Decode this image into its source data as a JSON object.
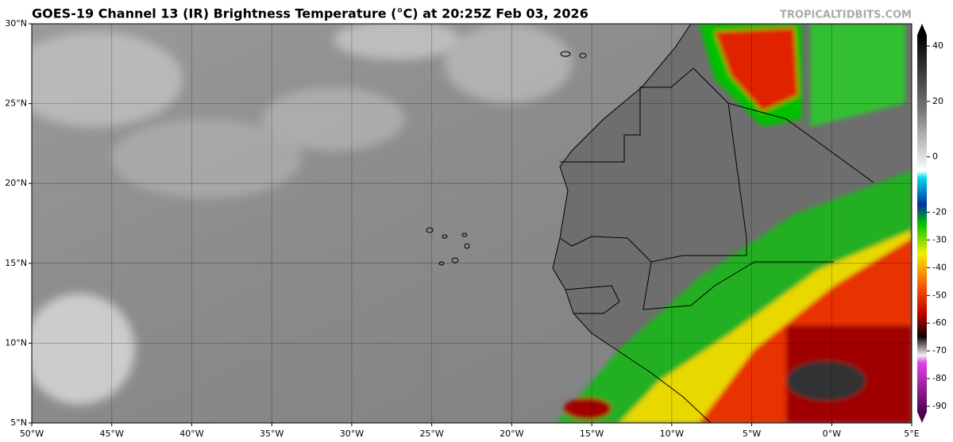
{
  "header": {
    "title": "GOES-19 Channel 13 (IR) Brightness Temperature (°C) at 20:25Z Feb 03, 2026",
    "site": "TROPICALTIDBITS.COM"
  },
  "map": {
    "lonlim": [
      -50,
      5
    ],
    "latlim": [
      5,
      30
    ],
    "lon_ticks": [
      {
        "value": -50,
        "label": "50°W"
      },
      {
        "value": -45,
        "label": "45°W"
      },
      {
        "value": -40,
        "label": "40°W"
      },
      {
        "value": -35,
        "label": "35°W"
      },
      {
        "value": -30,
        "label": "30°W"
      },
      {
        "value": -25,
        "label": "25°W"
      },
      {
        "value": -20,
        "label": "20°W"
      },
      {
        "value": -15,
        "label": "15°W"
      },
      {
        "value": -10,
        "label": "10°W"
      },
      {
        "value": -5,
        "label": "5°W"
      },
      {
        "value": 0,
        "label": "0°W"
      },
      {
        "value": 5,
        "label": "5°E"
      }
    ],
    "lat_ticks": [
      {
        "value": 30,
        "label": "30°N"
      },
      {
        "value": 25,
        "label": "25°N"
      },
      {
        "value": 20,
        "label": "20°N"
      },
      {
        "value": 15,
        "label": "15°N"
      },
      {
        "value": 10,
        "label": "10°N"
      },
      {
        "value": 5,
        "label": "5°N"
      }
    ]
  },
  "colorbar": {
    "lim": [
      -92,
      44
    ],
    "ticks": [
      40,
      20,
      0,
      -20,
      -30,
      -40,
      -50,
      -60,
      -70,
      -80,
      -90
    ]
  }
}
